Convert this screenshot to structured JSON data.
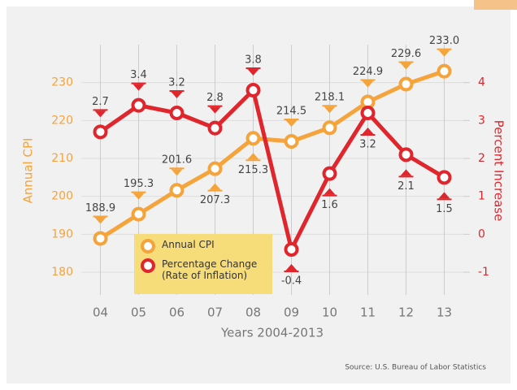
{
  "chart_data": {
    "type": "line",
    "xlabel": "Years 2004-2013",
    "ylabel": "Annual CPI",
    "y2label": "Percent Increase",
    "source": "Source: U.S. Bureau of Labor Statistics",
    "categories": [
      "04",
      "05",
      "06",
      "07",
      "08",
      "09",
      "10",
      "11",
      "12",
      "13"
    ],
    "series": [
      {
        "name": "Annual CPI",
        "color": "#f5a33b",
        "axis": "y",
        "values": [
          188.9,
          195.3,
          201.6,
          207.3,
          215.3,
          214.5,
          218.1,
          224.9,
          229.6,
          233.0
        ],
        "value_labels": [
          "188.9",
          "195.3",
          "201.6",
          "207.3",
          "215.3",
          "214.5",
          "218.1",
          "224.9",
          "229.6",
          "233.0"
        ]
      },
      {
        "name": "Percentage Change (Rate of Inflation)",
        "color": "#e0262d",
        "axis": "y2",
        "values": [
          2.7,
          3.4,
          3.2,
          2.8,
          3.8,
          -0.4,
          1.6,
          3.2,
          2.1,
          1.5
        ]
      }
    ],
    "ylim": [
      174,
      240
    ],
    "yticks": [
      180,
      190,
      200,
      210,
      220,
      230
    ],
    "y2lim": [
      -1.6,
      5.0
    ],
    "y2ticks": [
      -1,
      0,
      1,
      2,
      3,
      4
    ],
    "grid": true
  }
}
